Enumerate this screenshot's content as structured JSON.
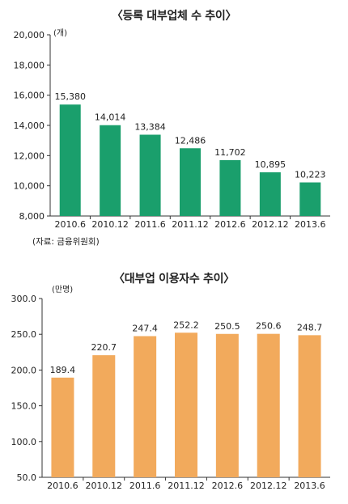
{
  "chart_data": [
    {
      "type": "bar",
      "title": "〈등록 대부업체 수 추이〉",
      "unit_label": "(개)",
      "categories": [
        "2010.6",
        "2010.12",
        "2011.6",
        "2011.12",
        "2012.6",
        "2012.12",
        "2013.6"
      ],
      "values": [
        15380,
        14014,
        13384,
        12486,
        11702,
        10895,
        10223
      ],
      "value_labels": [
        "15,380",
        "14,014",
        "13,384",
        "12,486",
        "11,702",
        "10,895",
        "10,223"
      ],
      "y_ticks": [
        "8,000",
        "10,000",
        "12,000",
        "14,000",
        "16,000",
        "18,000",
        "20,000"
      ],
      "ylim": [
        8000,
        20000
      ],
      "bar_color": "#1a9f6c",
      "source": "(자료: 금융위원회)"
    },
    {
      "type": "bar",
      "title": "〈대부업 이용자수 추이〉",
      "unit_label": "(만명)",
      "categories": [
        "2010.6",
        "2010.12",
        "2011.6",
        "2011.12",
        "2012.6",
        "2012.12",
        "2013.6"
      ],
      "values": [
        189.4,
        220.7,
        247.4,
        252.2,
        250.5,
        250.6,
        248.7
      ],
      "value_labels": [
        "189.4",
        "220.7",
        "247.4",
        "252.2",
        "250.5",
        "250.6",
        "248.7"
      ],
      "y_ticks": [
        "50.0",
        "100.0",
        "150.0",
        "200.0",
        "250.0",
        "300.0"
      ],
      "ylim": [
        50,
        300
      ],
      "bar_color": "#f2aa5c"
    }
  ]
}
